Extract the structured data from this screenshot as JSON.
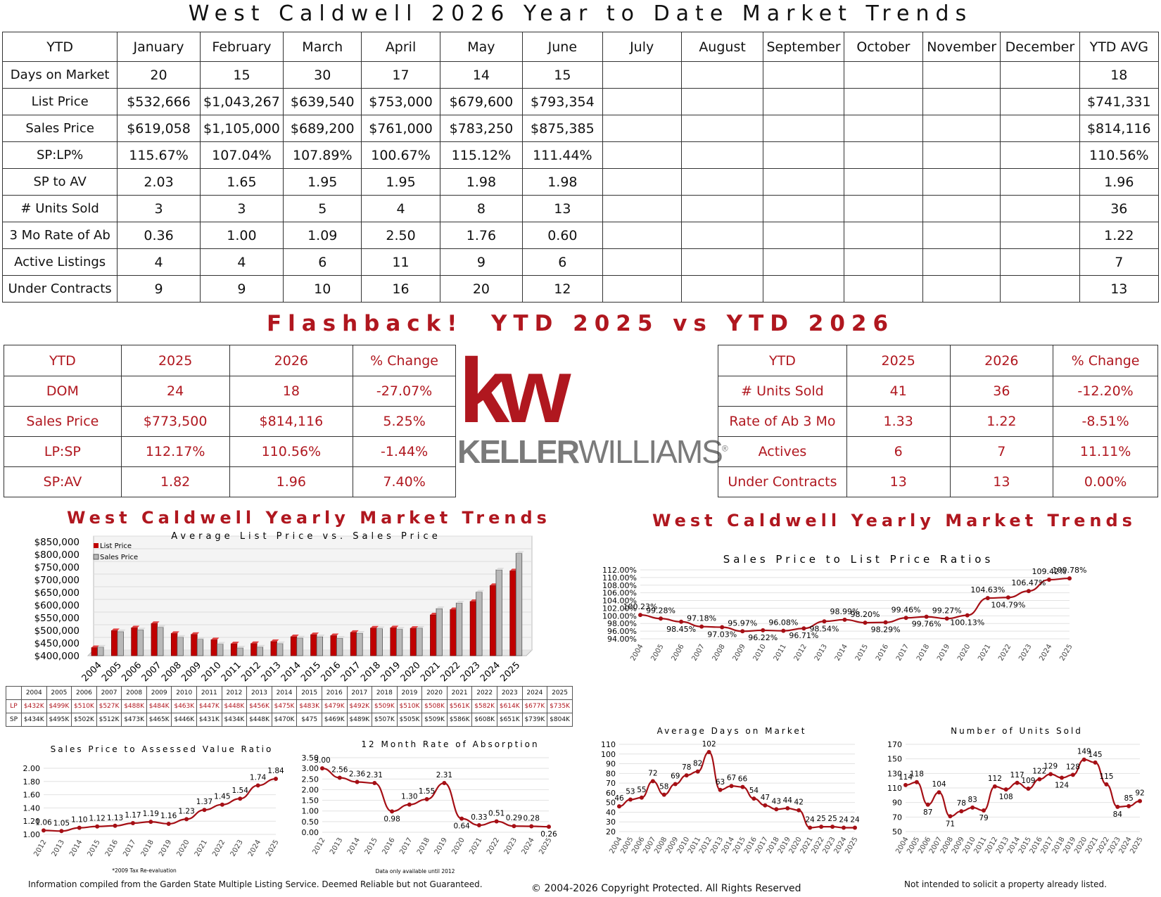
{
  "title": "West Caldwell 2026 Year to Date Market Trends",
  "ytd_table": {
    "headers": [
      "YTD",
      "January",
      "February",
      "March",
      "April",
      "May",
      "June",
      "July",
      "August",
      "September",
      "October",
      "November",
      "December",
      "YTD AVG"
    ],
    "rows": [
      {
        "label": "Days on Market",
        "values": [
          "20",
          "15",
          "30",
          "17",
          "14",
          "15",
          "",
          "",
          "",
          "",
          "",
          "",
          "18"
        ]
      },
      {
        "label": "List Price",
        "values": [
          "$532,666",
          "$1,043,267",
          "$639,540",
          "$753,000",
          "$679,600",
          "$793,354",
          "",
          "",
          "",
          "",
          "",
          "",
          "$741,331"
        ]
      },
      {
        "label": "Sales Price",
        "values": [
          "$619,058",
          "$1,105,000",
          "$689,200",
          "$761,000",
          "$783,250",
          "$875,385",
          "",
          "",
          "",
          "",
          "",
          "",
          "$814,116"
        ]
      },
      {
        "label": "SP:LP%",
        "values": [
          "115.67%",
          "107.04%",
          "107.89%",
          "100.67%",
          "115.12%",
          "111.44%",
          "",
          "",
          "",
          "",
          "",
          "",
          "110.56%"
        ]
      },
      {
        "label": "SP to AV",
        "values": [
          "2.03",
          "1.65",
          "1.95",
          "1.95",
          "1.98",
          "1.98",
          "",
          "",
          "",
          "",
          "",
          "",
          "1.96"
        ]
      },
      {
        "label": "# Units Sold",
        "values": [
          "3",
          "3",
          "5",
          "4",
          "8",
          "13",
          "",
          "",
          "",
          "",
          "",
          "",
          "36"
        ]
      },
      {
        "label": "3 Mo Rate of Ab",
        "values": [
          "0.36",
          "1.00",
          "1.09",
          "2.50",
          "1.76",
          "0.60",
          "",
          "",
          "",
          "",
          "",
          "",
          "1.22"
        ]
      },
      {
        "label": "Active Listings",
        "values": [
          "4",
          "4",
          "6",
          "11",
          "9",
          "6",
          "",
          "",
          "",
          "",
          "",
          "",
          "7"
        ]
      },
      {
        "label": "Under Contracts",
        "values": [
          "9",
          "9",
          "10",
          "16",
          "20",
          "12",
          "",
          "",
          "",
          "",
          "",
          "",
          "13"
        ]
      }
    ]
  },
  "flashback_title": "Flashback!  YTD 2025 vs YTD 2026",
  "compare_left": {
    "headers": [
      "YTD",
      "2025",
      "2026",
      "% Change"
    ],
    "rows": [
      [
        "DOM",
        "24",
        "18",
        "-27.07%"
      ],
      [
        "Sales Price",
        "$773,500",
        "$814,116",
        "5.25%"
      ],
      [
        "LP:SP",
        "112.17%",
        "110.56%",
        "-1.44%"
      ],
      [
        "SP:AV",
        "1.82",
        "1.96",
        "7.40%"
      ]
    ]
  },
  "compare_right": {
    "headers": [
      "YTD",
      "2025",
      "2026",
      "% Change"
    ],
    "rows": [
      [
        "# Units Sold",
        "41",
        "36",
        "-12.20%"
      ],
      [
        "Rate of Ab 3 Mo",
        "1.33",
        "1.22",
        "-8.51%"
      ],
      [
        "Actives",
        "6",
        "7",
        "11.11%"
      ],
      [
        "Under Contracts",
        "13",
        "13",
        "0.00%"
      ]
    ]
  },
  "logo": {
    "mark": "kw",
    "brand_a": "KELLER",
    "brand_b": "WILLIAMS",
    "reg": "®",
    "colors": {
      "red": "#b0171f",
      "gray": "#7a7a7a"
    }
  },
  "yearly_title_left": "West Caldwell Yearly Market Trends",
  "yearly_title_right": "West Caldwell Yearly Market Trends",
  "chart_data": [
    {
      "type": "bar",
      "title": "Average List Price vs. Sales Price",
      "categories": [
        "2004",
        "2005",
        "2006",
        "2007",
        "2008",
        "2009",
        "2010",
        "2011",
        "2012",
        "2013",
        "2014",
        "2015",
        "2016",
        "2017",
        "2018",
        "2019",
        "2020",
        "2021",
        "2022",
        "2023",
        "2024",
        "2025"
      ],
      "series": [
        {
          "name": "List Price",
          "color": "#c00000",
          "values": [
            432,
            499,
            510,
            527,
            488,
            484,
            463,
            447,
            448,
            456,
            475,
            483,
            479,
            492,
            509,
            510,
            508,
            561,
            582,
            614,
            677,
            735
          ]
        },
        {
          "name": "Sales Price",
          "color": "#b8b8b8",
          "values": [
            434,
            495,
            502,
            512,
            473,
            465,
            446,
            431,
            434,
            448,
            470,
            475,
            469,
            489,
            507,
            505,
            509,
            586,
            608,
            651,
            739,
            804
          ]
        }
      ],
      "ylim": [
        400000,
        850000
      ],
      "y_ticks": [
        "$400,000",
        "$450,000",
        "$500,000",
        "$550,000",
        "$600,000",
        "$650,000",
        "$700,000",
        "$750,000",
        "$800,000",
        "$850,000"
      ],
      "legend": "top-left",
      "table": {
        "row_labels": [
          "LP",
          "SP"
        ],
        "lp": [
          "$432K",
          "$499K",
          "$510K",
          "$527K",
          "$488K",
          "$484K",
          "$463K",
          "$447K",
          "$448K",
          "$456K",
          "$475K",
          "$483K",
          "$479K",
          "$492K",
          "$509K",
          "$510K",
          "$508K",
          "$561K",
          "$582K",
          "$614K",
          "$677K",
          "$735K"
        ],
        "sp": [
          "$434K",
          "$495K",
          "$502K",
          "$512K",
          "$473K",
          "$465K",
          "$446K",
          "$431K",
          "$434K",
          "$448K",
          "$470K",
          "$475",
          "$469K",
          "$489K",
          "$507K",
          "$505K",
          "$509K",
          "$586K",
          "$608K",
          "$651K",
          "$739K",
          "$804K"
        ]
      }
    },
    {
      "type": "line",
      "title": "Sales Price to List Price Ratios",
      "categories": [
        "2004",
        "2005",
        "2006",
        "2007",
        "2008",
        "2009",
        "2010",
        "2011",
        "2012",
        "2013",
        "2014",
        "2015",
        "2016",
        "2017",
        "2018",
        "2019",
        "2020",
        "2021",
        "2022",
        "2023",
        "2024",
        "2025"
      ],
      "values": [
        100.23,
        99.28,
        98.45,
        97.18,
        97.03,
        95.97,
        96.22,
        96.08,
        96.71,
        98.54,
        98.99,
        98.2,
        98.29,
        99.46,
        99.76,
        99.27,
        100.13,
        104.63,
        104.79,
        106.47,
        109.42,
        109.78
      ],
      "labels": [
        "100.23%",
        "99.28%",
        "98.45%",
        "97.18%",
        "97.03%",
        "95.97%",
        "96.22%",
        "96.08%",
        "96.71%",
        "98.54%",
        "98.99%",
        "98.20%",
        "98.29%",
        "99.46%",
        "99.76%",
        "99.27%",
        "100.13%",
        "104.63%",
        "104.79%",
        "106.47%",
        "109.42%",
        "109.78%"
      ],
      "ylim": [
        94,
        112
      ],
      "y_ticks": [
        "94.00%",
        "96.00%",
        "98.00%",
        "100.00%",
        "102.00%",
        "104.00%",
        "106.00%",
        "108.00%",
        "110.00%",
        "112.00%"
      ]
    },
    {
      "type": "line",
      "title": "Sales Price to Assessed Value Ratio",
      "categories": [
        "2012",
        "2013",
        "2014",
        "2015",
        "2016",
        "2017",
        "2018",
        "2019",
        "2020",
        "2021",
        "2022",
        "2023",
        "2024",
        "2025"
      ],
      "values": [
        1.06,
        1.05,
        1.1,
        1.12,
        1.13,
        1.17,
        1.19,
        1.16,
        1.23,
        1.37,
        1.45,
        1.54,
        1.74,
        1.84
      ],
      "labels": [
        "1.06",
        "1.05",
        "1.10",
        "1.12",
        "1.13",
        "1.17",
        "1.19",
        "1.16",
        "1.23",
        "1.37",
        "1.45",
        "1.54",
        "1.74",
        "1.84"
      ],
      "ylim": [
        1.0,
        2.0
      ],
      "y_ticks": [
        "1.00",
        "1.20",
        "1.40",
        "1.60",
        "1.80",
        "2.00"
      ],
      "note": "*2009 Tax Re-evaluation"
    },
    {
      "type": "line",
      "title": "12 Month Rate of Absorption",
      "categories": [
        "2012",
        "2013",
        "2014",
        "2015",
        "2016",
        "2017",
        "2018",
        "2019",
        "2020",
        "2021",
        "2022",
        "2023",
        "2024",
        "2025"
      ],
      "values": [
        3.0,
        2.56,
        2.36,
        2.31,
        0.98,
        1.3,
        1.55,
        2.31,
        0.64,
        0.33,
        0.51,
        0.29,
        0.28,
        0.26
      ],
      "labels": [
        "3.00",
        "2.56",
        "2.36",
        "2.31",
        "0.98",
        "1.30",
        "1.55",
        "2.31",
        "0.64",
        "0.33",
        "0.51",
        "0.29",
        "0.28",
        "0.26"
      ],
      "ylim": [
        0,
        3.5
      ],
      "y_ticks": [
        "0.00",
        "0.50",
        "1.00",
        "1.50",
        "2.00",
        "2.50",
        "3.00",
        "3.50"
      ],
      "note": "Data only available until 2012"
    },
    {
      "type": "line",
      "title": "Average Days on Market",
      "categories": [
        "2004",
        "2005",
        "2006",
        "2007",
        "2008",
        "2009",
        "2010",
        "2011",
        "2012",
        "2013",
        "2014",
        "2015",
        "2016",
        "2017",
        "2018",
        "2019",
        "2020",
        "2021",
        "2022",
        "2023",
        "2024",
        "2025"
      ],
      "values": [
        46,
        53,
        55,
        72,
        58,
        69,
        78,
        82,
        102,
        63,
        67,
        66,
        54,
        47,
        43,
        44,
        42,
        24,
        25,
        25,
        24,
        24
      ],
      "labels": [
        "46",
        "53",
        "55",
        "72",
        "58",
        "69",
        "78",
        "82",
        "102",
        "63",
        "67",
        "66",
        "54",
        "47",
        "43",
        "44",
        "42",
        "24",
        "25",
        "25",
        "24",
        "24"
      ],
      "ylim": [
        20,
        110
      ],
      "y_ticks": [
        "20",
        "30",
        "40",
        "50",
        "60",
        "70",
        "80",
        "90",
        "100",
        "110"
      ]
    },
    {
      "type": "line",
      "title": "Number of Units Sold",
      "categories": [
        "2004",
        "2005",
        "2006",
        "2007",
        "2008",
        "2009",
        "2010",
        "2011",
        "2012",
        "2013",
        "2014",
        "2015",
        "2016",
        "2017",
        "2018",
        "2019",
        "2020",
        "2021",
        "2022",
        "2023",
        "2024",
        "2025"
      ],
      "values": [
        114,
        118,
        87,
        104,
        71,
        78,
        83,
        79,
        112,
        108,
        117,
        109,
        122,
        129,
        124,
        128,
        149,
        145,
        115,
        84,
        85,
        92
      ],
      "labels": [
        "114",
        "118",
        "87",
        "104",
        "71",
        "78",
        "83",
        "79",
        "112",
        "108",
        "117",
        "109",
        "122",
        "129",
        "124",
        "128",
        "149",
        "145",
        "115",
        "84",
        "85",
        "92"
      ],
      "ylim": [
        50,
        170
      ],
      "y_ticks": [
        "50",
        "70",
        "90",
        "110",
        "130",
        "150",
        "170"
      ]
    }
  ],
  "footer": {
    "left": "Information compiled from the Garden State Multiple Listing Service.  Deemed Reliable but not Guaranteed.",
    "center": "© 2004-2026 Copyright Protected.  All Rights Reserved",
    "right": "Not intended to solicit a property already listed."
  }
}
